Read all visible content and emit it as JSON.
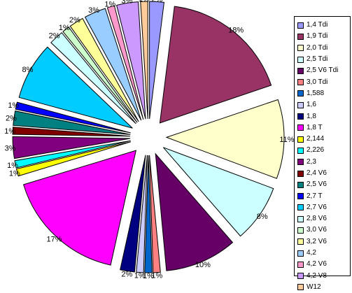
{
  "chart_data": {
    "type": "pie",
    "exploded": true,
    "start_angle_deg": 90,
    "direction": "clockwise",
    "legend_position": "right",
    "data_labels": "percent",
    "slices": [
      {
        "label": "1,4 Tdi",
        "value": 2,
        "display": "2%",
        "color": "#9999FF"
      },
      {
        "label": "1,9 Tdi",
        "value": 18,
        "display": "18%",
        "color": "#993366"
      },
      {
        "label": "2,0 Tdi",
        "value": 11,
        "display": "11%",
        "color": "#FFFFCC"
      },
      {
        "label": "2,5 Tdi",
        "value": 8,
        "display": "8%",
        "color": "#CCFFFF"
      },
      {
        "label": "2,5 V6 Tdi",
        "value": 10,
        "display": "10%",
        "color": "#660066"
      },
      {
        "label": "3,0 Tdi",
        "value": 1,
        "display": "1%",
        "color": "#FF8080"
      },
      {
        "label": "1,588",
        "value": 1,
        "display": "1%",
        "color": "#0066CC"
      },
      {
        "label": "1,6",
        "value": 1,
        "display": "1%",
        "color": "#CCCCFF"
      },
      {
        "label": "1,8",
        "value": 2,
        "display": "2%",
        "color": "#000080"
      },
      {
        "label": "1,8 T",
        "value": 17,
        "display": "17%",
        "color": "#FF00FF"
      },
      {
        "label": "2,144",
        "value": 1,
        "display": "1%",
        "color": "#FFFF00"
      },
      {
        "label": "2,226",
        "value": 1,
        "display": "1%",
        "color": "#00FFFF"
      },
      {
        "label": "2,3",
        "value": 3,
        "display": "3%",
        "color": "#800080"
      },
      {
        "label": "2,4 V6",
        "value": 1,
        "display": "1%",
        "color": "#800000"
      },
      {
        "label": "2,5 V6",
        "value": 2,
        "display": "2%",
        "color": "#008080"
      },
      {
        "label": "2,7 T",
        "value": 1,
        "display": "1%",
        "color": "#0000FF"
      },
      {
        "label": "2,7 V6",
        "value": 8,
        "display": "8%",
        "color": "#00CCFF"
      },
      {
        "label": "2,8 V6",
        "value": 2,
        "display": "2%",
        "color": "#CCFFFF"
      },
      {
        "label": "3,0 V6",
        "value": 1,
        "display": "1%",
        "color": "#CCFFCC"
      },
      {
        "label": "3,2 V6",
        "value": 2,
        "display": "2%",
        "color": "#FFFF99"
      },
      {
        "label": "4,2",
        "value": 3,
        "display": "3%",
        "color": "#99CCFF"
      },
      {
        "label": "4,2 V6",
        "value": 1,
        "display": "1%",
        "color": "#FF99CC"
      },
      {
        "label": "4,2 V8",
        "value": 3,
        "display": "3%",
        "color": "#CC99FF"
      },
      {
        "label": "W12",
        "value": 1,
        "display": "1%",
        "color": "#FFCC99"
      }
    ]
  }
}
